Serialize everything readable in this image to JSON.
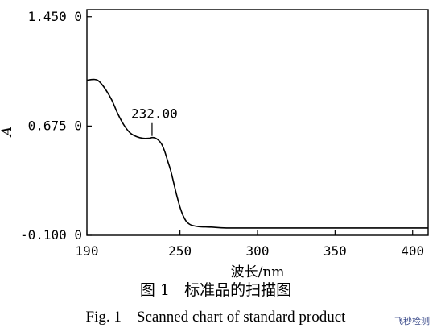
{
  "chart_data": {
    "type": "line",
    "xlabel": "波长/nm",
    "ylabel": "A",
    "xlim": [
      190,
      410
    ],
    "ylim": [
      -0.1,
      1.5
    ],
    "x_ticks": [
      190,
      250,
      300,
      350,
      400
    ],
    "x_tick_labels": [
      "190",
      "250",
      "300",
      "350",
      "400"
    ],
    "y_ticks": [
      -0.1,
      0.675,
      1.45
    ],
    "y_tick_labels": [
      "-0.100 0",
      "0.675 0",
      "1.450 0"
    ],
    "grid": false,
    "series": [
      {
        "color": "#000000",
        "x": [
          190,
          195,
          198,
          202,
          206,
          210,
          214,
          218,
          222,
          226,
          230,
          232,
          234,
          236,
          238,
          240,
          242,
          244,
          246,
          248,
          250,
          252,
          254,
          256,
          258,
          262,
          270,
          280,
          300,
          350,
          410
        ],
        "y": [
          1.0,
          1.005,
          0.99,
          0.935,
          0.86,
          0.76,
          0.68,
          0.625,
          0.6,
          0.588,
          0.588,
          0.593,
          0.59,
          0.576,
          0.55,
          0.5,
          0.43,
          0.36,
          0.27,
          0.18,
          0.1,
          0.04,
          0.0,
          -0.02,
          -0.03,
          -0.038,
          -0.042,
          -0.048,
          -0.048,
          -0.048,
          -0.048
        ]
      }
    ],
    "annotations": [
      {
        "text": "232.00",
        "x": 232,
        "y": 0.593
      }
    ]
  },
  "caption": {
    "cn": "图 1   标准品的扫描图",
    "en": "Fig. 1    Scanned chart of standard product"
  },
  "watermark": "飞秒检测"
}
